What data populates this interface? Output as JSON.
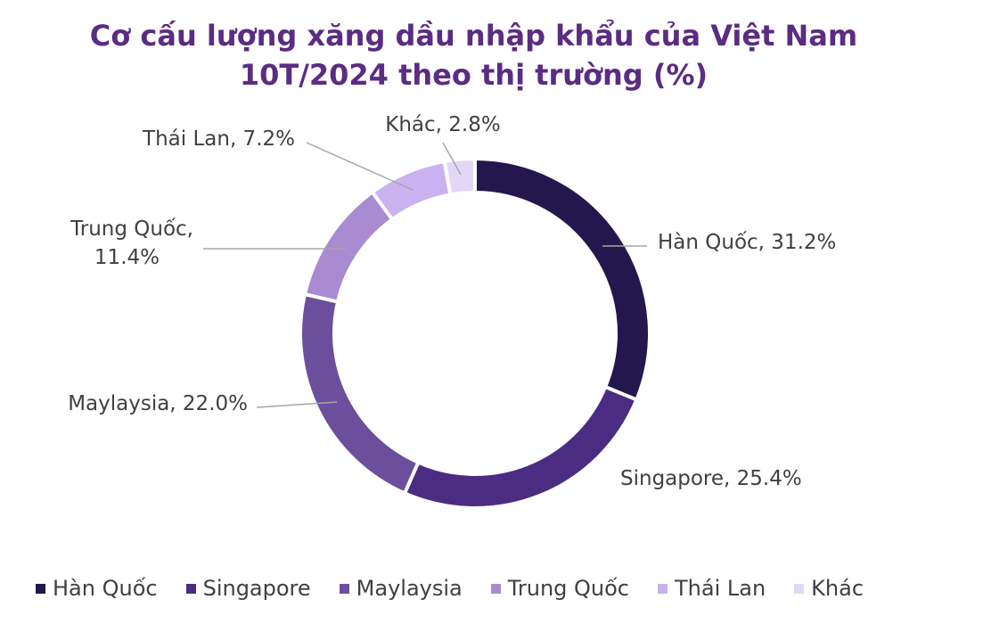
{
  "title_line1": "Cơ cấu lượng xăng dầu nhập khẩu của Việt Nam",
  "title_line2": "10T/2024 theo thị trường (%)",
  "chart_data": {
    "type": "pie",
    "donut": true,
    "title": "Cơ cấu lượng xăng dầu nhập khẩu của Việt Nam 10T/2024 theo thị trường (%)",
    "unit": "%",
    "legend_position": "bottom",
    "categories": [
      "Hàn Quốc",
      "Singapore",
      "Maylaysia",
      "Trung Quốc",
      "Thái Lan",
      "Khác"
    ],
    "values": [
      31.2,
      25.4,
      22.0,
      11.4,
      7.2,
      2.8
    ],
    "data_labels": [
      "Hàn Quốc, 31.2%",
      "Singapore, 25.4%",
      "Maylaysia, 22.0%",
      "Trung Quốc, 11.4%",
      "Thái Lan, 7.2%",
      "Khác, 2.8%"
    ],
    "colors": [
      "#24174d",
      "#4b2c83",
      "#6b4f9c",
      "#a98bd1",
      "#c9b2ef",
      "#e2d7f7"
    ]
  }
}
